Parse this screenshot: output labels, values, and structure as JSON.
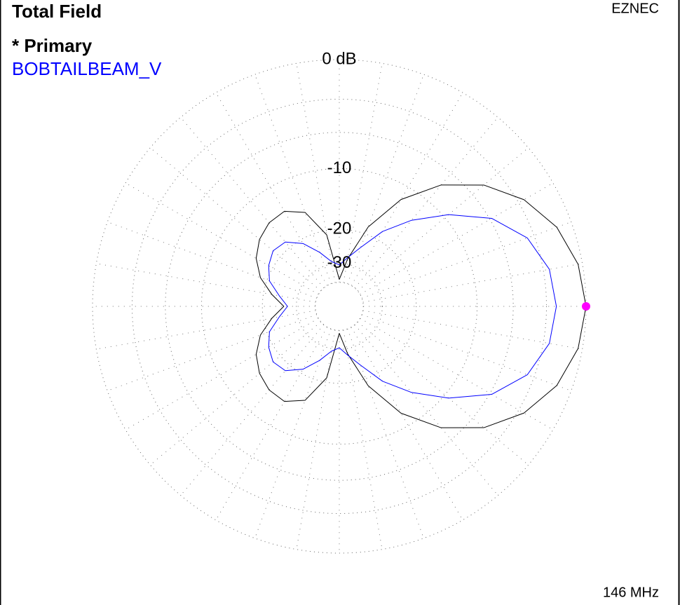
{
  "chart_data": {
    "type": "polar",
    "title": "Total Field",
    "corner_label": "EZNEC",
    "footer": "146 MHz",
    "scale": "arrl-log",
    "rlim": [
      -40,
      0
    ],
    "rticks": [
      {
        "value": 0,
        "label": "0 dB"
      },
      {
        "value": -3,
        "label": null
      },
      {
        "value": -6,
        "label": null
      },
      -10,
      -20,
      -30,
      {
        "value": -40,
        "label": null
      }
    ],
    "x": [
      0,
      10,
      20,
      30,
      40,
      50,
      60,
      70,
      80,
      90,
      100,
      110,
      120,
      130,
      140,
      150,
      160,
      170,
      180,
      190,
      200,
      210,
      220,
      230,
      240,
      250,
      260,
      270,
      280,
      290,
      300,
      310,
      320,
      330,
      340,
      350
    ],
    "series": [
      {
        "name": "* Primary",
        "color": "#000000",
        "values": [
          0,
          -0.3,
          -1.1,
          -2.5,
          -4.6,
          -7.6,
          -11.9,
          -18.4,
          -28,
          -38,
          -21,
          -15.5,
          -13.9,
          -14,
          -14.8,
          -16.2,
          -18.5,
          -22,
          -25.6,
          -22,
          -18.5,
          -16.2,
          -14.8,
          -14,
          -13.9,
          -15.5,
          -21,
          -38,
          -28,
          -18.4,
          -11.9,
          -7.6,
          -4.6,
          -2.5,
          -1.1,
          -0.3
        ]
      },
      {
        "name": "BOBTAILBEAM_V",
        "color": "#0000ff",
        "values": [
          -2.2,
          -2.5,
          -3.6,
          -5.8,
          -9.4,
          -13.5,
          -18,
          -23.5,
          -27.5,
          -30.6,
          -29,
          -25,
          -21,
          -18.5,
          -18,
          -19,
          -20.6,
          -24,
          -26.8,
          -24,
          -20.6,
          -19,
          -18,
          -18.5,
          -21,
          -25,
          -29,
          -30.6,
          -27.5,
          -23.5,
          -18,
          -13.5,
          -9.4,
          -5.8,
          -3.6,
          -2.5
        ]
      }
    ],
    "marker": {
      "x": 0,
      "value": 0,
      "color": "#ff00ff"
    }
  }
}
